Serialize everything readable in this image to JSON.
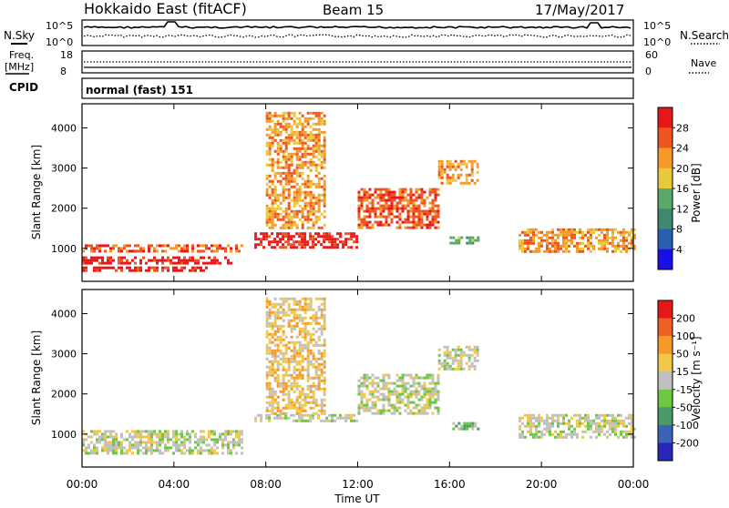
{
  "header": {
    "station": "Hokkaido East (fitACF)",
    "beam": "Beam 15",
    "date": "17/May/2017"
  },
  "top_panel": {
    "left_label": "N.Sky",
    "right_label": "N.Search",
    "left_ticks": [
      "10^5",
      "10^0"
    ],
    "right_ticks": [
      "10^5",
      "10^0"
    ]
  },
  "freq_panel": {
    "left_label_1": "Freq.",
    "left_label_2": "[MHz]",
    "right_label": "Nave",
    "left_ticks": [
      "18",
      "8"
    ],
    "right_ticks": [
      "60",
      "0"
    ]
  },
  "cpid": {
    "label": "CPID",
    "value": "normal (fast) 151"
  },
  "axes": {
    "ylabel": "Slant Range [km]",
    "xlabel": "Time UT",
    "y_ticks": [
      "1000",
      "2000",
      "3000",
      "4000"
    ],
    "x_ticks": [
      "00:00",
      "04:00",
      "08:00",
      "12:00",
      "16:00",
      "20:00",
      "00:00"
    ]
  },
  "power_scale": {
    "title": "Power [dB]",
    "labels": [
      "4",
      "8",
      "12",
      "16",
      "20",
      "24",
      "28"
    ],
    "colors": [
      "#1a10e6",
      "#2a5fb0",
      "#3e8a70",
      "#5aa86a",
      "#e8c93a",
      "#f59a28",
      "#ee5520",
      "#e8181a"
    ]
  },
  "velocity_scale": {
    "title": "Velocity [m s⁻¹]",
    "labels": [
      "200",
      "100",
      "50",
      "15",
      "-15",
      "-50",
      "-100",
      "-200"
    ],
    "colors": [
      "#2828b8",
      "#3a64b8",
      "#4a9a6a",
      "#6cc840",
      "#c0c0c0",
      "#f0c848",
      "#f59a28",
      "#f06020",
      "#e81818"
    ]
  },
  "chart_data": [
    {
      "type": "heatmap",
      "name": "power",
      "xlim": [
        0,
        24
      ],
      "ylim": [
        180,
        4600
      ],
      "x_unit": "hours UT",
      "y_unit": "km",
      "echo_regions": [
        {
          "t0": 0.0,
          "t1": 7.0,
          "r0": 900,
          "r1": 1100,
          "level": 24
        },
        {
          "t0": 0.0,
          "t1": 6.5,
          "r0": 650,
          "r1": 800,
          "level": 28
        },
        {
          "t0": 0.0,
          "t1": 5.5,
          "r0": 450,
          "r1": 550,
          "level": 28
        },
        {
          "t0": 7.5,
          "t1": 12.0,
          "r0": 1000,
          "r1": 1400,
          "level": 28
        },
        {
          "t0": 8.0,
          "t1": 10.5,
          "r0": 1500,
          "r1": 4400,
          "level": 20
        },
        {
          "t0": 12.0,
          "t1": 15.5,
          "r0": 1500,
          "r1": 2500,
          "level": 24
        },
        {
          "t0": 15.5,
          "t1": 17.2,
          "r0": 2600,
          "r1": 3200,
          "level": 20
        },
        {
          "t0": 16.0,
          "t1": 17.2,
          "r0": 1100,
          "r1": 1300,
          "level": 12
        },
        {
          "t0": 19.0,
          "t1": 24.0,
          "r0": 900,
          "r1": 1500,
          "level": 20
        }
      ]
    },
    {
      "type": "heatmap",
      "name": "velocity",
      "xlim": [
        0,
        24
      ],
      "ylim": [
        180,
        4600
      ],
      "x_unit": "hours UT",
      "y_unit": "km",
      "echo_regions": [
        {
          "t0": 0.0,
          "t1": 7.0,
          "r0": 500,
          "r1": 1100,
          "level": 0
        },
        {
          "t0": 7.5,
          "t1": 12.0,
          "r0": 1300,
          "r1": 1500,
          "level": 0
        },
        {
          "t0": 8.0,
          "t1": 10.5,
          "r0": 1500,
          "r1": 4400,
          "level": -15
        },
        {
          "t0": 12.0,
          "t1": 15.5,
          "r0": 1500,
          "r1": 2500,
          "level": 0
        },
        {
          "t0": 15.5,
          "t1": 17.2,
          "r0": 2600,
          "r1": 3200,
          "level": 0
        },
        {
          "t0": 16.0,
          "t1": 17.2,
          "r0": 1100,
          "r1": 1300,
          "level": 50
        },
        {
          "t0": 19.0,
          "t1": 24.0,
          "r0": 900,
          "r1": 1500,
          "level": 0
        }
      ]
    }
  ]
}
